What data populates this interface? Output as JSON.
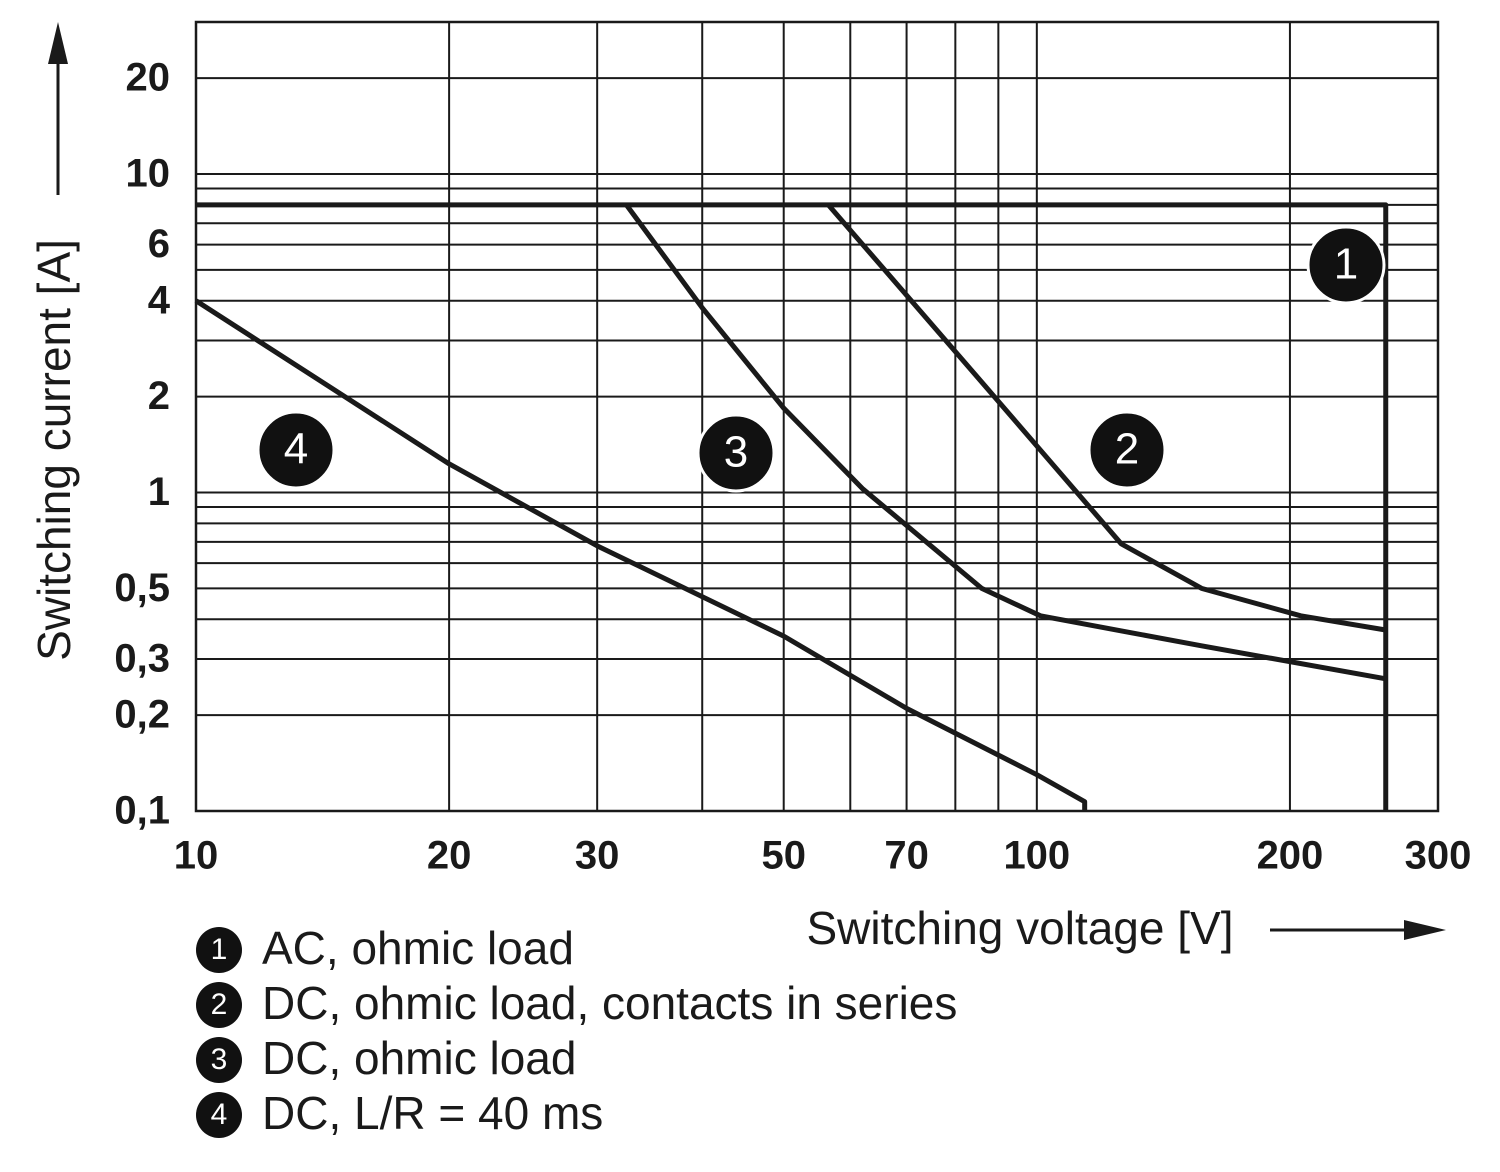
{
  "chart_data": {
    "type": "line",
    "x_label": "Switching voltage [V]",
    "y_label": "Switching current [A]",
    "xscale": "log",
    "yscale": "log",
    "xlim": [
      10,
      300
    ],
    "ylim": [
      0.1,
      30
    ],
    "xticks": [
      10,
      20,
      30,
      50,
      70,
      100,
      200,
      300
    ],
    "yticks": [
      {
        "value": 0.1,
        "label": "0,1"
      },
      {
        "value": 0.2,
        "label": "0,2"
      },
      {
        "value": 0.3,
        "label": "0,3"
      },
      {
        "value": 0.5,
        "label": "0,5"
      },
      1,
      2,
      4,
      6,
      10,
      20
    ],
    "xgrid": [
      10,
      20,
      30,
      40,
      50,
      60,
      70,
      80,
      90,
      100,
      200,
      300
    ],
    "ygrid": [
      0.1,
      0.2,
      0.3,
      0.4,
      0.5,
      0.6,
      0.7,
      0.8,
      0.9,
      1,
      2,
      3,
      4,
      5,
      6,
      7,
      8,
      9,
      10,
      20
    ],
    "grid": true,
    "series": [
      {
        "marker": "1",
        "name": "AC, ohmic load",
        "color": "#1a1a1a",
        "x": [
          10,
          260,
          260
        ],
        "values": [
          8,
          8,
          0.1
        ]
      },
      {
        "marker": "2",
        "name": "DC, ohmic load, contacts in series",
        "color": "#1a1a1a",
        "x": [
          56.5,
          89,
          126,
          157,
          206,
          260
        ],
        "values": [
          8,
          2,
          0.69,
          0.5,
          0.41,
          0.37
        ]
      },
      {
        "marker": "3",
        "name": "DC, ohmic load",
        "color": "#1a1a1a",
        "x": [
          32.5,
          40,
          50,
          62,
          86,
          101,
          157,
          260
        ],
        "values": [
          8,
          3.8,
          1.84,
          1.03,
          0.5,
          0.41,
          0.33,
          0.26
        ]
      },
      {
        "marker": "4",
        "name": "DC, L/R = 40 ms",
        "color": "#1a1a1a",
        "x": [
          10,
          20,
          30,
          50,
          70,
          100,
          114,
          114
        ],
        "values": [
          4,
          1.23,
          0.68,
          0.354,
          0.21,
          0.13,
          0.107,
          0.1
        ]
      }
    ]
  }
}
